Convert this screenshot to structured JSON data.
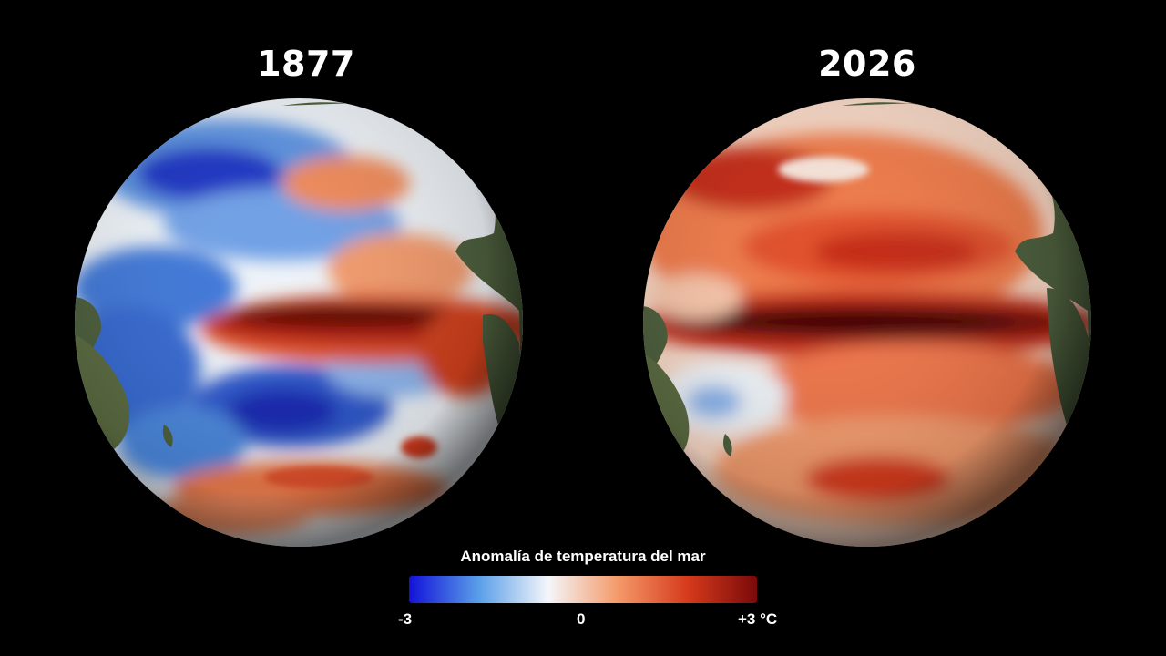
{
  "panels": [
    {
      "title": "1877"
    },
    {
      "title": "2026"
    }
  ],
  "legend": {
    "title": "Anomalía de temperatura del mar",
    "ticks": [
      "-3",
      "0",
      "+3 °C"
    ],
    "colors": [
      "#1212d9",
      "#5a9ee8",
      "#f4f6fa",
      "#f49a6a",
      "#d63a1c",
      "#7a0a0a"
    ]
  },
  "colors": {
    "background": "#000000",
    "land": "#4c5e3c",
    "ocean_neutral": "#eef3f8",
    "cold_strong": "#1a35c4",
    "cold": "#5b92e0",
    "warm": "#ef7a4a",
    "warm_strong": "#c42a12",
    "warm_extreme": "#4a0404"
  }
}
